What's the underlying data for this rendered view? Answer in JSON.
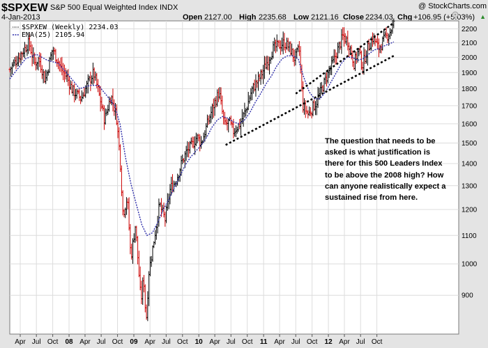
{
  "header": {
    "symbol": "$SPXEW",
    "name": "S&P 500 Equal Weighted Index",
    "exchange": "INDX",
    "date": "4-Jan-2013",
    "copyright": "@ StockCharts.com",
    "open_label": "Open",
    "open": "2127.00",
    "high_label": "High",
    "high": "2235.68",
    "low_label": "Low",
    "low": "2121.16",
    "close_label": "Close",
    "close": "2234.03",
    "chg_label": "Chg",
    "chg": "+106.95 (+5.03%)",
    "chg_arrow": "▲"
  },
  "legend": {
    "price": "$SPXEW (Weekly) 2234.03",
    "ema": "EMA(25) 2105.94"
  },
  "annotation": {
    "text": "The question that needs to be asked is what justification is there for this 500 Leaders Index to be above the 2008 high? How can anyone realistically expect a sustained rise from here."
  },
  "colors": {
    "up": "#000000",
    "down": "#cc0000",
    "ema": "#2a2aa8",
    "grid": "#dcdcdc",
    "plot_bg": "#ffffff",
    "frame_bg": "#e4e4e4"
  },
  "chart_data": {
    "type": "bar",
    "interval": "weekly",
    "x_range": [
      "2006-02-01",
      "2013-01-04"
    ],
    "y_scale": "log",
    "ylim": [
      790,
      2260
    ],
    "y_ticks": [
      900,
      1000,
      1100,
      1200,
      1300,
      1400,
      1500,
      1600,
      1700,
      1800,
      1900,
      2000,
      2100,
      2200
    ],
    "x_ticks": [
      {
        "date": "2006-04-01",
        "label": "Apr",
        "bold": false
      },
      {
        "date": "2006-07-01",
        "label": "Jul",
        "bold": false
      },
      {
        "date": "2006-10-01",
        "label": "Oct",
        "bold": false
      },
      {
        "date": "2007-01-01",
        "label": "08",
        "bold": true
      },
      {
        "date": "2007-04-01",
        "label": "Apr",
        "bold": false
      },
      {
        "date": "2007-07-01",
        "label": "Jul",
        "bold": false
      },
      {
        "date": "2007-10-01",
        "label": "Oct",
        "bold": false
      },
      {
        "date": "2008-01-01",
        "label": "09",
        "bold": true
      },
      {
        "date": "2008-04-01",
        "label": "Apr",
        "bold": false
      },
      {
        "date": "2008-07-01",
        "label": "Jul",
        "bold": false
      },
      {
        "date": "2008-10-01",
        "label": "Oct",
        "bold": false
      },
      {
        "date": "2009-01-01",
        "label": "10",
        "bold": true
      },
      {
        "date": "2009-04-01",
        "label": "Apr",
        "bold": false
      },
      {
        "date": "2009-07-01",
        "label": "Jul",
        "bold": false
      },
      {
        "date": "2009-10-01",
        "label": "Oct",
        "bold": false
      },
      {
        "date": "2010-01-01",
        "label": "11",
        "bold": true
      },
      {
        "date": "2010-04-01",
        "label": "Apr",
        "bold": false
      },
      {
        "date": "2010-07-01",
        "label": "Jul",
        "bold": false
      },
      {
        "date": "2010-10-01",
        "label": "Oct",
        "bold": false
      },
      {
        "date": "2011-01-01",
        "label": "12",
        "bold": true
      },
      {
        "date": "2011-04-01",
        "label": "Apr",
        "bold": false
      },
      {
        "date": "2011-07-01",
        "label": "Jul",
        "bold": false
      },
      {
        "date": "2011-10-01",
        "label": "Oct",
        "bold": false
      }
    ],
    "price_path": [
      [
        "2006-02-01",
        1920
      ],
      [
        "2006-04-15",
        2040
      ],
      [
        "2006-05-20",
        2100
      ],
      [
        "2006-06-20",
        1960
      ],
      [
        "2006-07-15",
        1990
      ],
      [
        "2006-08-20",
        1850
      ],
      [
        "2006-09-30",
        2060
      ],
      [
        "2006-11-15",
        1930
      ],
      [
        "2006-12-20",
        1870
      ],
      [
        "2007-01-20",
        1790
      ],
      [
        "2007-03-10",
        1740
      ],
      [
        "2007-04-20",
        1840
      ],
      [
        "2007-05-20",
        1900
      ],
      [
        "2007-06-25",
        1740
      ],
      [
        "2007-07-20",
        1620
      ],
      [
        "2007-08-25",
        1760
      ],
      [
        "2007-09-25",
        1640
      ],
      [
        "2007-10-15",
        1430
      ],
      [
        "2007-11-01",
        1180
      ],
      [
        "2007-11-25",
        1250
      ],
      [
        "2007-12-15",
        1020
      ],
      [
        "2008-01-10",
        1140
      ],
      [
        "2008-02-10",
        880
      ],
      [
        "2008-02-25",
        960
      ],
      [
        "2008-03-10",
        820
      ],
      [
        "2008-03-25",
        970
      ],
      [
        "2008-04-25",
        1090
      ],
      [
        "2008-05-25",
        1220
      ],
      [
        "2008-06-25",
        1160
      ],
      [
        "2008-07-25",
        1290
      ],
      [
        "2008-08-25",
        1320
      ],
      [
        "2008-09-25",
        1400
      ],
      [
        "2008-10-25",
        1460
      ],
      [
        "2008-11-25",
        1490
      ],
      [
        "2008-12-20",
        1530
      ],
      [
        "2009-01-15",
        1500
      ],
      [
        "2009-02-15",
        1590
      ],
      [
        "2009-03-20",
        1690
      ],
      [
        "2009-04-25",
        1780
      ],
      [
        "2009-05-25",
        1590
      ],
      [
        "2009-06-20",
        1610
      ],
      [
        "2009-07-15",
        1560
      ],
      [
        "2009-08-20",
        1600
      ],
      [
        "2009-09-25",
        1680
      ],
      [
        "2009-10-25",
        1790
      ],
      [
        "2009-11-25",
        1840
      ],
      [
        "2009-12-25",
        1900
      ],
      [
        "2010-01-25",
        1980
      ],
      [
        "2010-02-25",
        2060
      ],
      [
        "2010-03-25",
        2080
      ],
      [
        "2010-04-25",
        2100
      ],
      [
        "2010-05-25",
        2070
      ],
      [
        "2010-06-25",
        1990
      ],
      [
        "2010-07-20",
        2060
      ],
      [
        "2010-08-10",
        1700
      ],
      [
        "2010-09-10",
        1650
      ],
      [
        "2010-10-05",
        1690
      ],
      [
        "2010-10-25",
        1720
      ],
      [
        "2010-11-25",
        1800
      ],
      [
        "2010-12-25",
        1880
      ],
      [
        "2011-01-25",
        1960
      ],
      [
        "2011-02-25",
        2060
      ],
      [
        "2011-03-25",
        2150
      ],
      [
        "2011-04-25",
        2100
      ],
      [
        "2011-05-25",
        1960
      ],
      [
        "2011-06-20",
        2050
      ],
      [
        "2011-07-10",
        1940
      ],
      [
        "2011-08-10",
        2060
      ],
      [
        "2011-09-10",
        2140
      ],
      [
        "2011-10-10",
        2060
      ],
      [
        "2011-11-10",
        2120
      ],
      [
        "2011-12-10",
        2170
      ],
      [
        "2012-01-04",
        2234
      ]
    ],
    "ema_path": [
      [
        "2006-02-01",
        1860
      ],
      [
        "2006-05-01",
        1990
      ],
      [
        "2006-07-01",
        2020
      ],
      [
        "2006-09-01",
        1980
      ],
      [
        "2006-11-01",
        1960
      ],
      [
        "2007-01-01",
        1880
      ],
      [
        "2007-03-01",
        1800
      ],
      [
        "2007-05-01",
        1820
      ],
      [
        "2007-06-15",
        1820
      ],
      [
        "2007-08-01",
        1760
      ],
      [
        "2007-09-15",
        1700
      ],
      [
        "2007-10-15",
        1600
      ],
      [
        "2007-11-15",
        1430
      ],
      [
        "2007-12-15",
        1310
      ],
      [
        "2008-01-15",
        1220
      ],
      [
        "2008-02-15",
        1140
      ],
      [
        "2008-03-15",
        1100
      ],
      [
        "2008-04-15",
        1110
      ],
      [
        "2008-05-15",
        1150
      ],
      [
        "2008-06-15",
        1200
      ],
      [
        "2008-07-15",
        1240
      ],
      [
        "2008-08-15",
        1290
      ],
      [
        "2008-09-15",
        1340
      ],
      [
        "2008-10-15",
        1390
      ],
      [
        "2008-11-15",
        1430
      ],
      [
        "2008-12-15",
        1460
      ],
      [
        "2009-01-15",
        1490
      ],
      [
        "2009-02-15",
        1530
      ],
      [
        "2009-03-15",
        1580
      ],
      [
        "2009-04-15",
        1620
      ],
      [
        "2009-05-15",
        1640
      ],
      [
        "2009-06-15",
        1630
      ],
      [
        "2009-07-15",
        1610
      ],
      [
        "2009-08-15",
        1600
      ],
      [
        "2009-09-15",
        1620
      ],
      [
        "2009-10-15",
        1660
      ],
      [
        "2009-11-15",
        1720
      ],
      [
        "2009-12-15",
        1770
      ],
      [
        "2010-01-15",
        1830
      ],
      [
        "2010-02-15",
        1880
      ],
      [
        "2010-03-15",
        1940
      ],
      [
        "2010-04-15",
        1990
      ],
      [
        "2010-05-15",
        2010
      ],
      [
        "2010-06-15",
        2010
      ],
      [
        "2010-07-15",
        1990
      ],
      [
        "2010-08-15",
        1870
      ],
      [
        "2010-09-15",
        1780
      ],
      [
        "2010-10-15",
        1740
      ],
      [
        "2010-11-15",
        1740
      ],
      [
        "2010-12-15",
        1780
      ],
      [
        "2011-01-15",
        1840
      ],
      [
        "2011-02-15",
        1900
      ],
      [
        "2011-03-15",
        1960
      ],
      [
        "2011-04-15",
        2000
      ],
      [
        "2011-05-15",
        2000
      ],
      [
        "2011-06-15",
        1980
      ],
      [
        "2011-07-15",
        1990
      ],
      [
        "2011-08-15",
        2020
      ],
      [
        "2011-09-15",
        2050
      ],
      [
        "2011-10-15",
        2060
      ],
      [
        "2011-11-15",
        2080
      ],
      [
        "2011-12-15",
        2095
      ],
      [
        "2012-01-04",
        2105.94
      ]
    ],
    "trendlines": [
      {
        "name": "upper",
        "from": [
          "2010-07-01",
          1770
        ],
        "to": [
          "2012-01-04",
          2245
        ]
      },
      {
        "name": "lower",
        "from": [
          "2009-06-01",
          1490
        ],
        "to": [
          "2012-01-04",
          2010
        ]
      }
    ]
  }
}
